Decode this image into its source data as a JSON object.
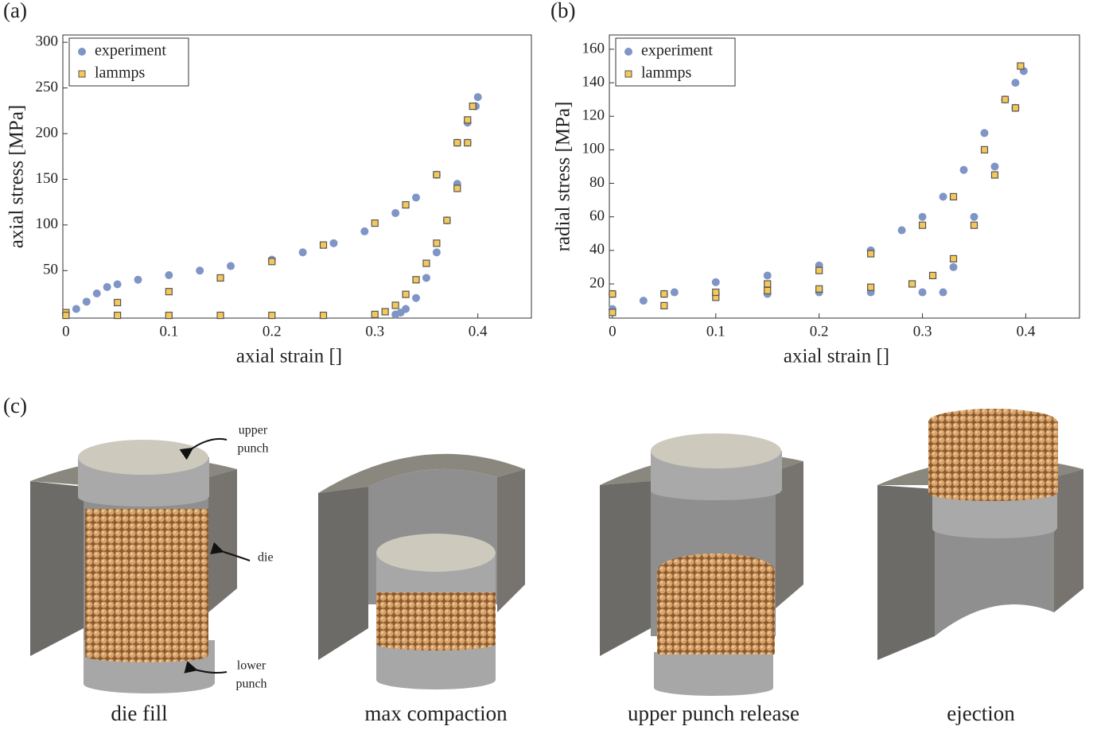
{
  "chart_data": [
    {
      "type": "scatter",
      "xlabel": "axial strain []",
      "ylabel": "axial stress [MPa]",
      "xlim": [
        -0.003,
        0.452
      ],
      "ylim": [
        -2,
        308
      ],
      "xticks": [
        0,
        0.1,
        0.2,
        0.3,
        0.4
      ],
      "yticks": [
        50,
        100,
        150,
        200,
        250,
        300
      ],
      "legend": "upper left",
      "series": [
        {
          "name": "experiment",
          "color": "#7f95c6",
          "marker": "circle",
          "x": [
            0,
            0.01,
            0.02,
            0.03,
            0.04,
            0.05,
            0.07,
            0.1,
            0.13,
            0.16,
            0.2,
            0.23,
            0.26,
            0.29,
            0.32,
            0.34,
            0.36,
            0.38,
            0.39,
            0.4,
            0.398,
            0.39,
            0.38,
            0.37,
            0.36,
            0.35,
            0.34,
            0.33,
            0.325,
            0.32
          ],
          "values": [
            3,
            8,
            16,
            25,
            32,
            35,
            40,
            45,
            50,
            55,
            62,
            70,
            80,
            93,
            113,
            130,
            155,
            190,
            212,
            240,
            230,
            190,
            145,
            105,
            70,
            42,
            20,
            8,
            4,
            2
          ]
        },
        {
          "name": "lammps",
          "color": "#f5c85a",
          "marker": "square",
          "x": [
            0,
            0.05,
            0.1,
            0.15,
            0.2,
            0.25,
            0.3,
            0.33,
            0.36,
            0.38,
            0.39,
            0.395,
            0.39,
            0.38,
            0.37,
            0.36,
            0.35,
            0.34,
            0.33,
            0.32,
            0.31,
            0.3,
            0.25,
            0.2,
            0.15,
            0.1,
            0.05,
            0
          ],
          "values": [
            4,
            15,
            27,
            42,
            60,
            78,
            102,
            122,
            155,
            190,
            215,
            230,
            190,
            140,
            105,
            80,
            58,
            40,
            24,
            12,
            5,
            2,
            1,
            1,
            1,
            1,
            1,
            1
          ]
        }
      ]
    },
    {
      "type": "scatter",
      "xlabel": "axial strain []",
      "ylabel": "radial stress [MPa]",
      "xlim": [
        -0.003,
        0.452
      ],
      "ylim": [
        -0.4,
        168.5
      ],
      "xticks": [
        0,
        0.1,
        0.2,
        0.3,
        0.4
      ],
      "yticks": [
        20,
        40,
        60,
        80,
        100,
        120,
        140,
        160
      ],
      "legend": "upper left",
      "series": [
        {
          "name": "experiment",
          "color": "#7f95c6",
          "marker": "circle",
          "x": [
            0,
            0.03,
            0.06,
            0.1,
            0.15,
            0.2,
            0.25,
            0.28,
            0.3,
            0.32,
            0.34,
            0.36,
            0.38,
            0.39,
            0.398,
            0.39,
            0.37,
            0.35,
            0.33,
            0.32,
            0.3,
            0.25,
            0.2,
            0.15,
            0.1,
            0.05,
            0
          ],
          "values": [
            5,
            10,
            15,
            21,
            25,
            31,
            40,
            52,
            60,
            72,
            88,
            110,
            130,
            140,
            147,
            125,
            90,
            60,
            30,
            15,
            15,
            15,
            15,
            14,
            14,
            14,
            14
          ]
        },
        {
          "name": "lammps",
          "color": "#f5c85a",
          "marker": "square",
          "x": [
            0,
            0.05,
            0.1,
            0.15,
            0.2,
            0.25,
            0.3,
            0.33,
            0.36,
            0.38,
            0.395,
            0.39,
            0.37,
            0.35,
            0.33,
            0.31,
            0.29,
            0.25,
            0.2,
            0.15,
            0.1,
            0.05,
            0
          ],
          "values": [
            3,
            7,
            12,
            20,
            28,
            38,
            55,
            72,
            100,
            130,
            150,
            125,
            85,
            55,
            35,
            25,
            20,
            18,
            17,
            16,
            15,
            14,
            14
          ]
        }
      ]
    }
  ],
  "figure": {
    "panel_labels": [
      "(a)",
      "(b)",
      "(c)"
    ],
    "stages": [
      "die fill",
      "max compaction",
      "upper punch release",
      "ejection"
    ],
    "annotations": {
      "upper_punch": [
        "upper",
        "punch"
      ],
      "die": "die",
      "lower_punch": [
        "lower",
        "punch"
      ]
    }
  }
}
